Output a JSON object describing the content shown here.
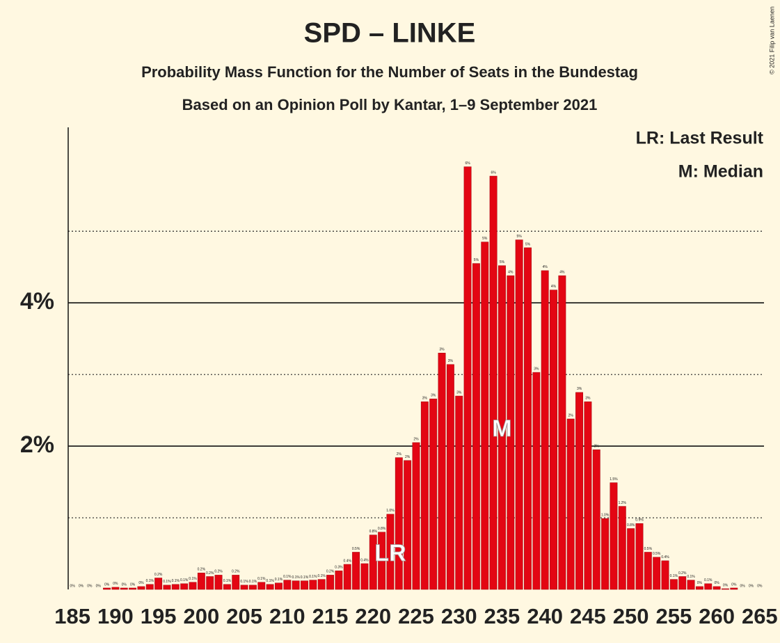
{
  "chart_data": {
    "type": "bar",
    "title": "SPD – LINKE",
    "subtitle": "Probability Mass Function for the Number of Seats in the Bundestag",
    "subtitle2": "Based on an Opinion Poll by Kantar, 1–9 September 2021",
    "copyright": "© 2021 Filip van Laenen",
    "legend": [
      "LR: Last Result",
      "M: Median"
    ],
    "markers": {
      "last_result": {
        "x": 222,
        "label": "LR"
      },
      "median": {
        "x": 235,
        "label": "M"
      }
    },
    "color": "#e30613",
    "x": [
      185,
      186,
      187,
      188,
      189,
      190,
      191,
      192,
      193,
      194,
      195,
      196,
      197,
      198,
      199,
      200,
      201,
      202,
      203,
      204,
      205,
      206,
      207,
      208,
      209,
      210,
      211,
      212,
      213,
      214,
      215,
      216,
      217,
      218,
      219,
      220,
      221,
      222,
      223,
      224,
      225,
      226,
      227,
      228,
      229,
      230,
      231,
      232,
      233,
      234,
      235,
      236,
      237,
      238,
      239,
      240,
      241,
      242,
      243,
      244,
      245,
      246,
      247,
      248,
      249,
      250,
      251,
      252,
      253,
      254,
      255,
      256,
      257,
      258,
      259,
      260,
      261,
      262,
      263,
      264,
      265
    ],
    "values": [
      0,
      0,
      0,
      0,
      0.02,
      0.03,
      0.02,
      0.02,
      0.04,
      0.07,
      0.16,
      0.06,
      0.07,
      0.08,
      0.1,
      0.23,
      0.18,
      0.2,
      0.07,
      0.2,
      0.06,
      0.06,
      0.1,
      0.07,
      0.09,
      0.13,
      0.12,
      0.12,
      0.13,
      0.14,
      0.2,
      0.26,
      0.35,
      0.52,
      0.36,
      0.76,
      0.8,
      1.05,
      1.84,
      1.8,
      2.05,
      2.62,
      2.66,
      3.3,
      3.14,
      2.7,
      5.9,
      4.55,
      4.85,
      5.77,
      4.52,
      4.38,
      4.88,
      4.77,
      3.03,
      4.45,
      4.18,
      4.38,
      2.38,
      2.75,
      2.62,
      1.95,
      0.99,
      1.49,
      1.16,
      0.85,
      0.92,
      0.52,
      0.45,
      0.4,
      0.14,
      0.18,
      0.13,
      0.04,
      0.08,
      0.04,
      0.01,
      0.02,
      0,
      0,
      0
    ],
    "value_labels": [
      "0%",
      "0%",
      "0%",
      "0%",
      "0%",
      "0%",
      "0%",
      "0%",
      "0%",
      "0.1%",
      "0.2%",
      "0.1%",
      "0.1%",
      "0.1%",
      "0.1%",
      "0.2%",
      "0.2%",
      "0.2%",
      "0.1%",
      "0.2%",
      "0.1%",
      "0.1%",
      "0.1%",
      "0.1%",
      "0.1%",
      "0.1%",
      "0.1%",
      "0.1%",
      "0.1%",
      "0.1%",
      "0.2%",
      "0.3%",
      "0.4%",
      "0.5%",
      "0.4%",
      "0.8%",
      "0.8%",
      "1.0%",
      "2%",
      "2%",
      "2%",
      "3%",
      "3%",
      "3%",
      "3%",
      "3%",
      "6%",
      "5%",
      "5%",
      "6%",
      "5%",
      "4%",
      "5%",
      "5%",
      "3%",
      "4%",
      "4%",
      "4%",
      "2%",
      "3%",
      "3%",
      "2%",
      "1.0%",
      "1.5%",
      "1.2%",
      "0.8%",
      "0.9%",
      "0.5%",
      "0.5%",
      "0.4%",
      "0.1%",
      "0.2%",
      "0.1%",
      "0%",
      "0.1%",
      "0%",
      "0%",
      "0%",
      "0%",
      "0%",
      "0%"
    ],
    "xlim": [
      184.5,
      265.5
    ],
    "xticks": [
      185,
      190,
      195,
      200,
      205,
      210,
      215,
      220,
      225,
      230,
      235,
      240,
      245,
      250,
      255,
      260,
      265
    ],
    "ylim": [
      0,
      6.45
    ],
    "yticks": [
      {
        "value": 2,
        "label": "2%"
      },
      {
        "value": 4,
        "label": "4%"
      }
    ],
    "minor_yticks": [
      1,
      3,
      5
    ],
    "grid": true
  }
}
